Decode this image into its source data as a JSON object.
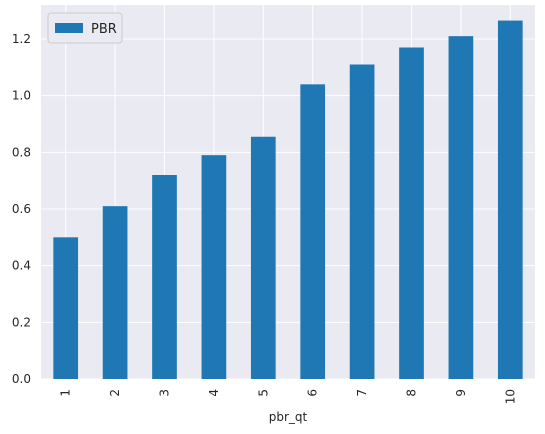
{
  "chart_data": {
    "type": "bar",
    "categories": [
      "1",
      "2",
      "3",
      "4",
      "5",
      "6",
      "7",
      "8",
      "9",
      "10"
    ],
    "series": [
      {
        "name": "PBR",
        "values": [
          0.5,
          0.61,
          0.72,
          0.79,
          0.855,
          1.04,
          1.11,
          1.17,
          1.21,
          1.265
        ],
        "color": "#1f77b4"
      }
    ],
    "title": "",
    "xlabel": "pbr_qt",
    "ylabel": "",
    "ylim": [
      0,
      1.32
    ],
    "yticks": [
      "0.0",
      "0.2",
      "0.4",
      "0.6",
      "0.8",
      "1.0",
      "1.2"
    ],
    "grid": true,
    "legend_position": "top-left",
    "background_color": "#eaeaf2",
    "grid_color": "#ffffff"
  }
}
